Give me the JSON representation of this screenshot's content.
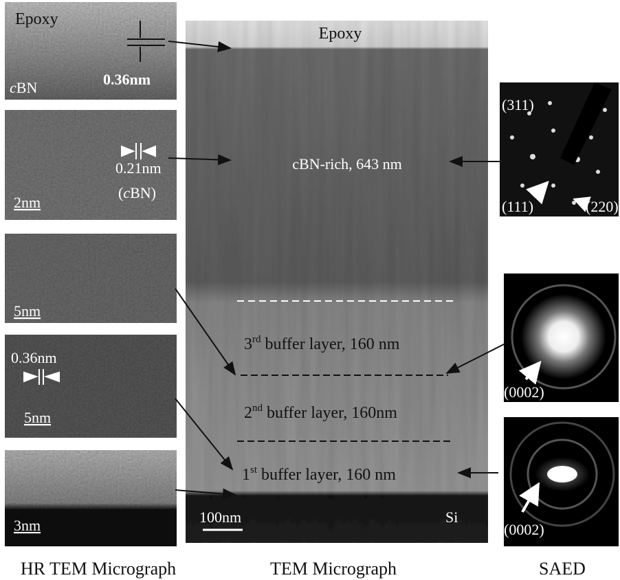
{
  "hrtem": {
    "caption": "HR TEM Micrograph",
    "panels": [
      {
        "label": "Epoxy",
        "material_italic": "c",
        "material_rest": "BN",
        "spacing": "0.36nm"
      },
      {
        "spacing": "0.21nm",
        "phase_open": "(",
        "phase_italic": "c",
        "phase_rest": "BN)",
        "scale": "2nm"
      },
      {
        "scale": "5nm"
      },
      {
        "spacing": "0.36nm",
        "scale": "5nm"
      },
      {
        "scale": "3nm"
      }
    ]
  },
  "tem": {
    "caption": "TEM Micrograph",
    "epoxy": "Epoxy",
    "cbn": "cBN-rich, 643 nm",
    "layers": [
      {
        "num": "3",
        "sup": "rd",
        "rest": " buffer layer, 160 nm"
      },
      {
        "num": "2",
        "sup": "nd",
        "rest": " buffer layer, 160nm"
      },
      {
        "num": "1",
        "sup": "st",
        "rest": " buffer layer, 160 nm"
      }
    ],
    "scale": "100nm",
    "substrate": "Si"
  },
  "saed": {
    "caption": "SAED",
    "patterns": [
      {
        "labels": [
          "(311)",
          "(111)",
          "(220)"
        ]
      },
      {
        "labels": [
          "(0002)"
        ]
      },
      {
        "labels": [
          "(0002)"
        ]
      }
    ]
  }
}
